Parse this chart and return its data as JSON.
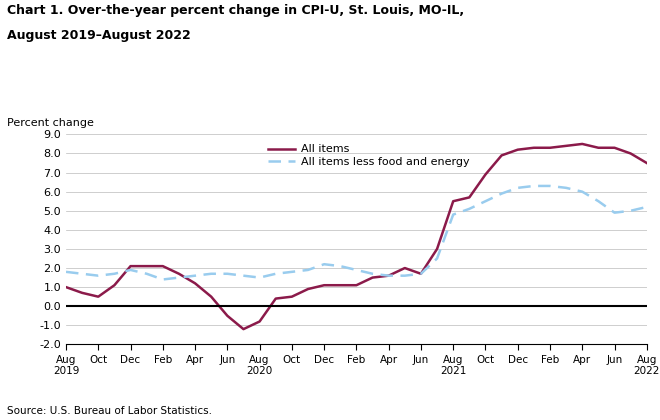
{
  "title_line1": "Chart 1. Over-the-year percent change in CPI-U, St. Louis, MO-IL,",
  "title_line2": "August 2019–August 2022",
  "ylabel": "Percent change",
  "source": "Source: U.S. Bureau of Labor Statistics.",
  "legend_all_items": "All items",
  "legend_core": "All items less food and energy",
  "all_items_color": "#8B1A4A",
  "core_color": "#99CCEE",
  "xlim_min": 0,
  "xlim_max": 36,
  "ylim_min": -2.0,
  "ylim_max": 9.0,
  "yticks": [
    -2.0,
    -1.0,
    0.0,
    1.0,
    2.0,
    3.0,
    4.0,
    5.0,
    6.0,
    7.0,
    8.0,
    9.0
  ],
  "tick_labels": [
    "Aug\n2019",
    "Oct",
    "Dec",
    "Feb",
    "Apr",
    "Jun",
    "Aug\n2020",
    "Oct",
    "Dec",
    "Feb",
    "Apr",
    "Jun",
    "Aug\n2021",
    "Oct",
    "Dec",
    "Feb",
    "Apr",
    "Jun",
    "Aug\n2022"
  ],
  "tick_positions": [
    0,
    2,
    4,
    6,
    8,
    10,
    12,
    14,
    16,
    18,
    20,
    22,
    24,
    26,
    28,
    30,
    32,
    34,
    36
  ],
  "all_items_x": [
    0,
    1,
    2,
    3,
    4,
    5,
    6,
    7,
    8,
    9,
    10,
    11,
    12,
    13,
    14,
    15,
    16,
    17,
    18,
    19,
    20,
    21,
    22,
    23,
    24,
    25,
    26,
    27,
    28,
    29,
    30,
    31,
    32,
    33,
    34,
    35,
    36
  ],
  "all_items_y": [
    1.0,
    0.7,
    0.5,
    1.1,
    2.1,
    2.1,
    2.1,
    1.7,
    1.2,
    0.5,
    -0.5,
    -1.2,
    -0.8,
    0.4,
    0.5,
    0.9,
    1.1,
    1.1,
    1.1,
    1.5,
    1.6,
    2.0,
    1.7,
    3.0,
    5.5,
    5.7,
    6.9,
    7.9,
    8.2,
    8.3,
    8.3,
    8.4,
    8.5,
    8.3,
    8.3,
    8.0,
    7.5
  ],
  "core_x": [
    0,
    1,
    2,
    3,
    4,
    5,
    6,
    7,
    8,
    9,
    10,
    11,
    12,
    13,
    14,
    15,
    16,
    17,
    18,
    19,
    20,
    21,
    22,
    23,
    24,
    25,
    26,
    27,
    28,
    29,
    30,
    31,
    32,
    33,
    34,
    35,
    36
  ],
  "core_y": [
    1.8,
    1.7,
    1.6,
    1.7,
    1.9,
    1.7,
    1.4,
    1.5,
    1.6,
    1.7,
    1.7,
    1.6,
    1.5,
    1.7,
    1.8,
    1.9,
    2.2,
    2.1,
    1.9,
    1.7,
    1.6,
    1.6,
    1.7,
    2.5,
    4.8,
    5.1,
    5.5,
    5.9,
    6.2,
    6.3,
    6.3,
    6.2,
    6.0,
    5.5,
    4.9,
    5.0,
    5.2
  ]
}
